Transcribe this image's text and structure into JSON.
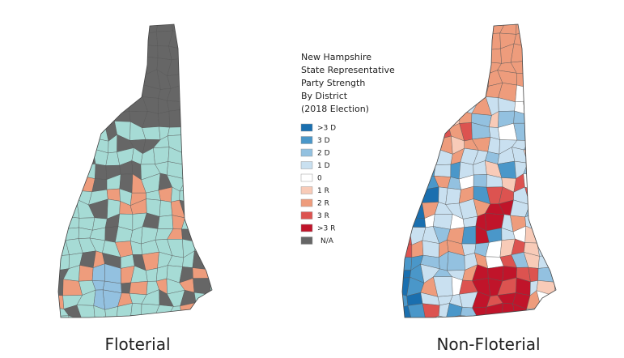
{
  "title_lines": [
    "New Hampshire",
    "State Representative",
    "Party Strength",
    "By District",
    "(2018 Election)"
  ],
  "legend": [
    {
      "label": ">3 D",
      "color": "#1a6faf"
    },
    {
      "label": "3 D",
      "color": "#4a97c9"
    },
    {
      "label": "2 D",
      "color": "#93c1e0"
    },
    {
      "label": "1 D",
      "color": "#c9e0f0"
    },
    {
      "label": "0",
      "color": "#ffffff"
    },
    {
      "label": "1 R",
      "color": "#f8cbb8"
    },
    {
      "label": "2 R",
      "color": "#ee9c7c"
    },
    {
      "label": "3 R",
      "color": "#dc5350"
    },
    {
      "label": ">3 R",
      "color": "#c0142a"
    },
    {
      "label": "N/A",
      "color": "#666666"
    }
  ],
  "maps": [
    {
      "caption": "Floterial"
    },
    {
      "caption": "Non-Floterial"
    }
  ]
}
